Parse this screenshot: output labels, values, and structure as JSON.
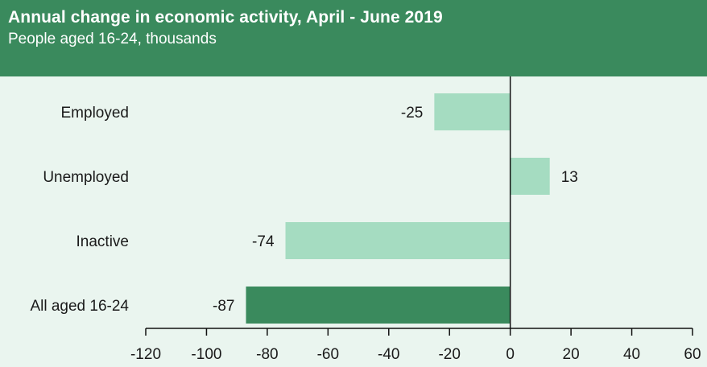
{
  "header": {
    "title": "Annual change in economic activity, April - June 2019",
    "subtitle": "People aged 16-24, thousands"
  },
  "colors": {
    "header_bg": "#3a8a5d",
    "plot_bg": "#eaf5ef",
    "bar_light": "#a5dcc1",
    "bar_dark": "#3a8a5d",
    "axis": "#111111"
  },
  "chart_data": {
    "type": "bar",
    "orientation": "horizontal",
    "title": "Annual change in economic activity, April - June 2019",
    "subtitle": "People aged 16-24, thousands",
    "categories": [
      "Employed",
      "Unemployed",
      "Inactive",
      "All aged 16-24"
    ],
    "values": [
      -25,
      13,
      -74,
      -87
    ],
    "data_labels": [
      "-25",
      "13",
      "-74",
      "-87"
    ],
    "highlight": [
      false,
      false,
      false,
      true
    ],
    "xlim": [
      -120,
      60
    ],
    "xticks": [
      -120,
      -100,
      -80,
      -60,
      -40,
      -20,
      0,
      20,
      40,
      60
    ],
    "grid": false,
    "legend": "none"
  }
}
